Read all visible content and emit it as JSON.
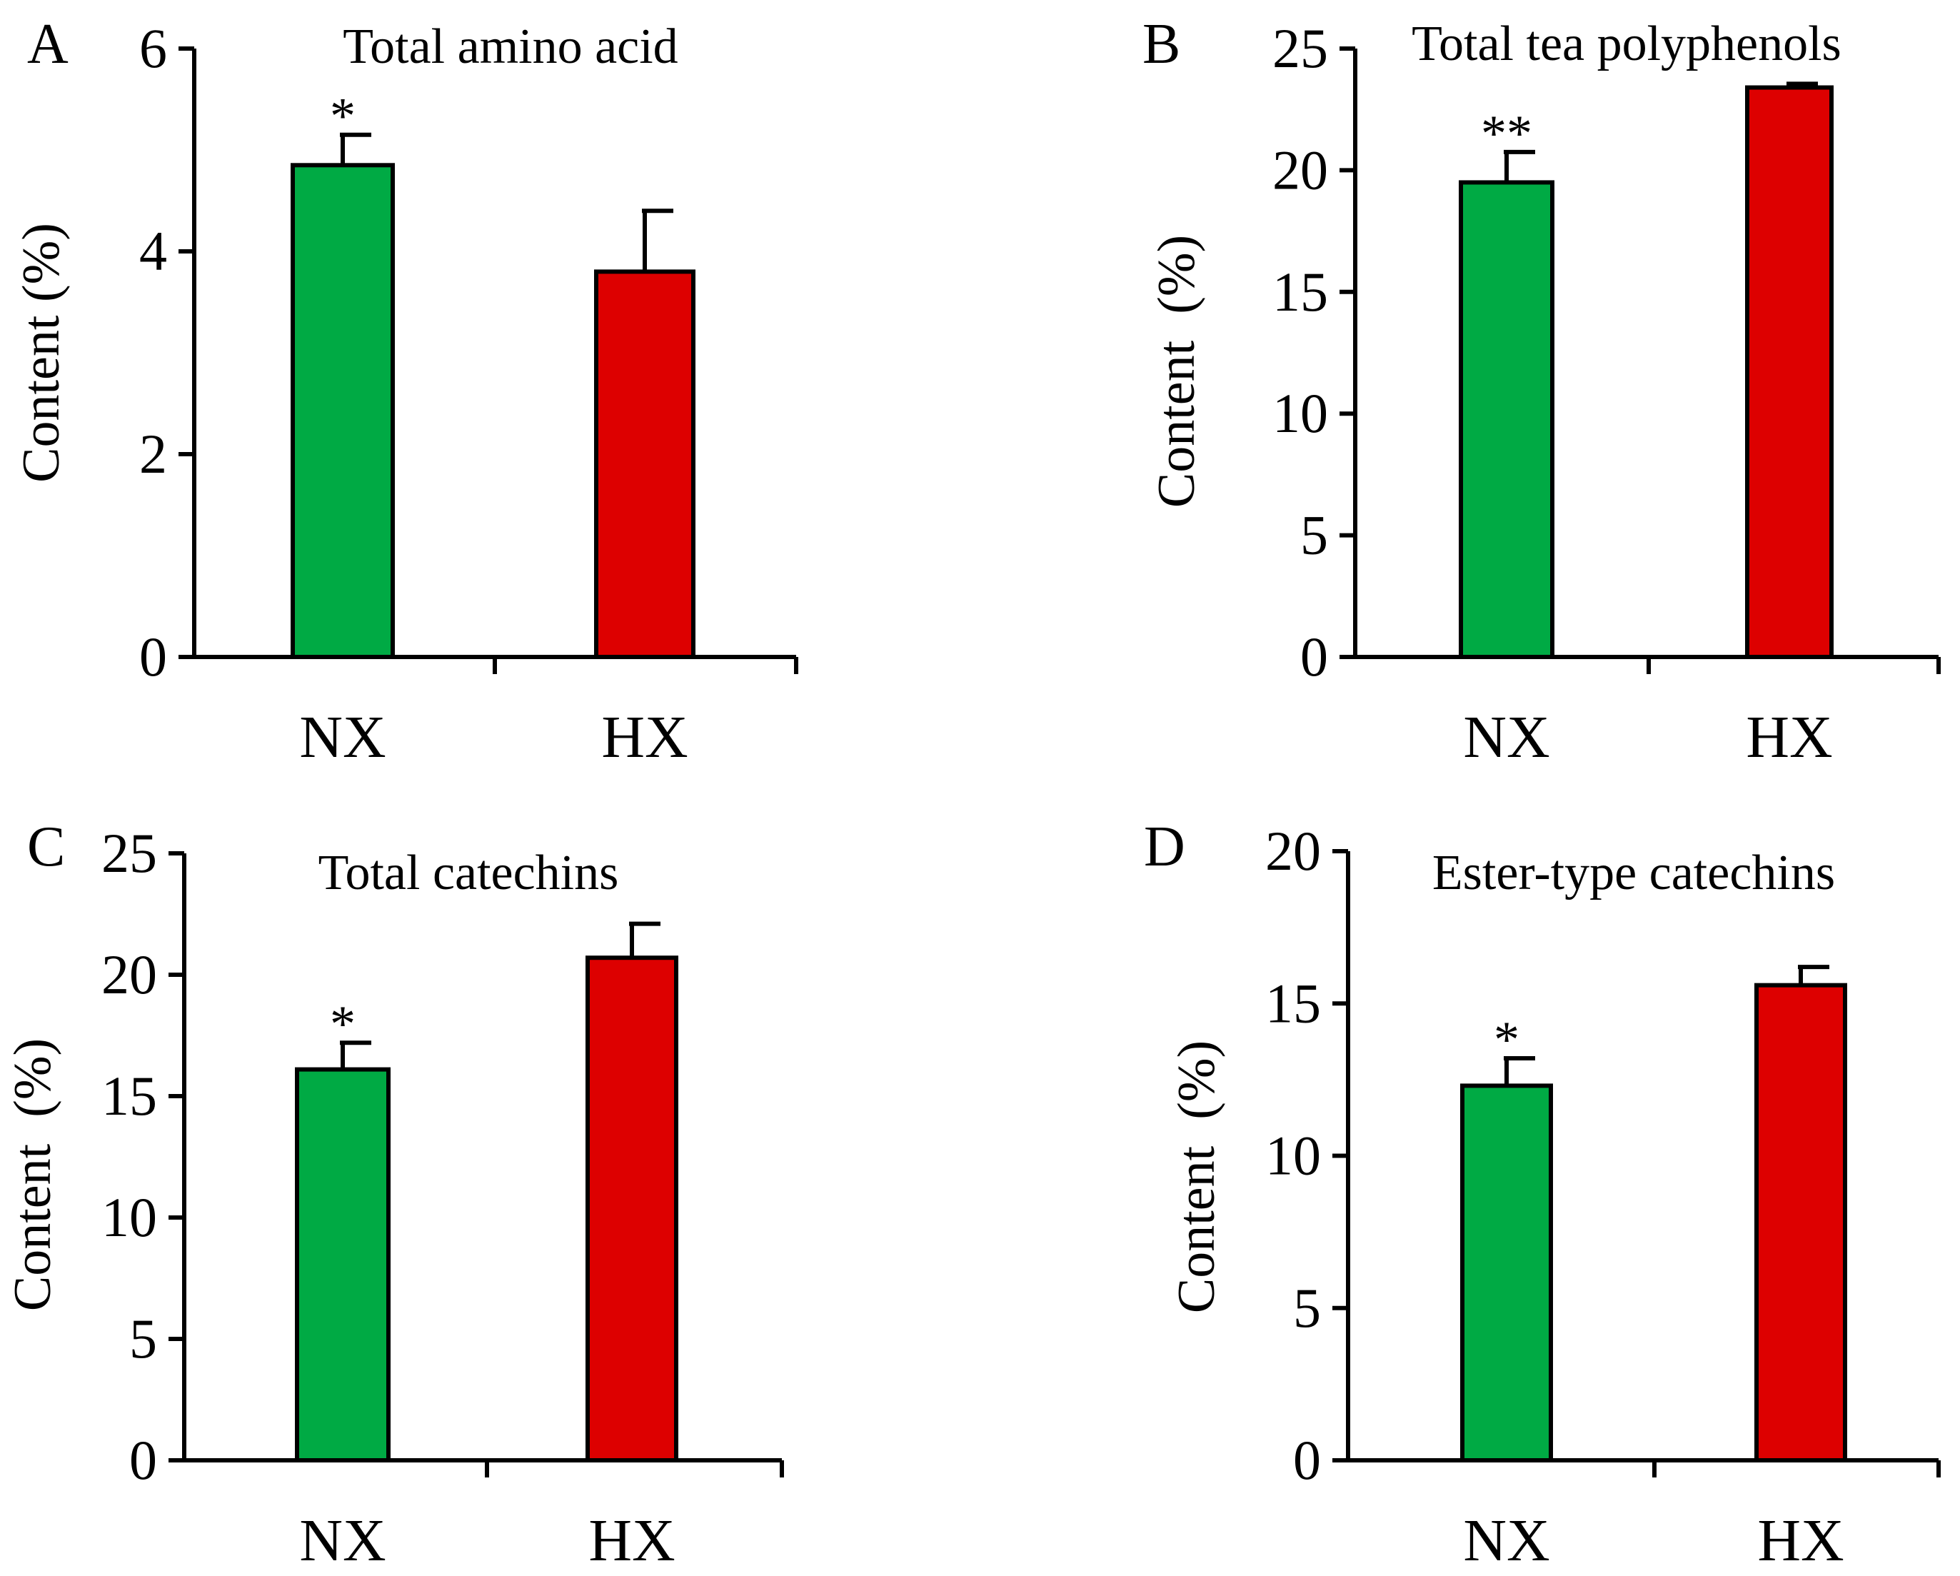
{
  "chart_data": [
    {
      "type": "bar",
      "panel": "A",
      "title": "Total amino acid",
      "xlabel": "",
      "ylabel": "Content (%)",
      "categories": [
        "NX",
        "HX"
      ],
      "values": [
        4.85,
        3.8
      ],
      "errors": [
        0.3,
        0.6
      ],
      "significance": [
        "*",
        ""
      ],
      "colors": [
        "#00AA44",
        "#DD0000"
      ],
      "ylim": [
        0,
        6
      ],
      "yticks": [
        0,
        2,
        4,
        6
      ],
      "legend": "none",
      "grid": false
    },
    {
      "type": "bar",
      "panel": "B",
      "title": "Total tea polyphenols",
      "xlabel": "",
      "ylabel": "Content  (%)",
      "categories": [
        "NX",
        "HX"
      ],
      "values": [
        19.5,
        23.4
      ],
      "errors": [
        1.25,
        0.15
      ],
      "significance": [
        "**",
        ""
      ],
      "colors": [
        "#00AA44",
        "#DD0000"
      ],
      "ylim": [
        0,
        25
      ],
      "yticks": [
        0,
        5,
        10,
        15,
        20,
        25
      ],
      "legend": "none",
      "grid": false
    },
    {
      "type": "bar",
      "panel": "C",
      "title": "Total catechins",
      "xlabel": "",
      "ylabel": "Content  (%)",
      "categories": [
        "NX",
        "HX"
      ],
      "values": [
        16.1,
        20.7
      ],
      "errors": [
        1.1,
        1.4
      ],
      "significance": [
        "*",
        ""
      ],
      "colors": [
        "#00AA44",
        "#DD0000"
      ],
      "ylim": [
        0,
        25
      ],
      "yticks": [
        0,
        5,
        10,
        15,
        20,
        25
      ],
      "legend": "none",
      "grid": false
    },
    {
      "type": "bar",
      "panel": "D",
      "title": "Ester-type catechins",
      "xlabel": "",
      "ylabel": "Content  (%)",
      "categories": [
        "NX",
        "HX"
      ],
      "values": [
        12.3,
        15.6
      ],
      "errors": [
        0.9,
        0.6
      ],
      "significance": [
        "*",
        ""
      ],
      "colors": [
        "#00AA44",
        "#DD0000"
      ],
      "ylim": [
        0,
        20
      ],
      "yticks": [
        0,
        5,
        10,
        15,
        20
      ],
      "legend": "none",
      "grid": false
    }
  ]
}
